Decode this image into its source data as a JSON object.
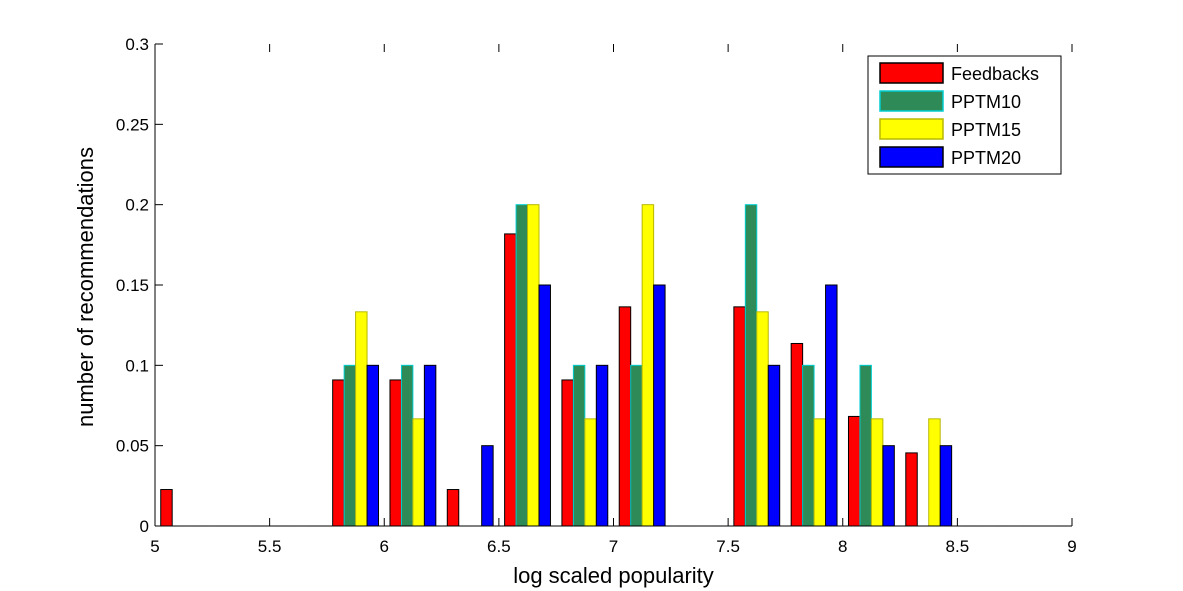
{
  "chart_data": {
    "type": "bar",
    "title": "",
    "xlabel": "log scaled popularity",
    "ylabel": "number of recommendations",
    "xlim": [
      5,
      9
    ],
    "ylim": [
      0,
      0.3
    ],
    "xticks": [
      "5",
      "5.5",
      "6",
      "6.5",
      "7",
      "7.5",
      "8",
      "8.5",
      "9"
    ],
    "yticks": [
      "0",
      "0.05",
      "0.1",
      "0.15",
      "0.2",
      "0.25",
      "0.3"
    ],
    "x": [
      5.125,
      5.375,
      5.625,
      5.875,
      6.125,
      6.375,
      6.625,
      6.875,
      7.125,
      7.375,
      7.625,
      7.875,
      8.125,
      8.375,
      8.625,
      8.875
    ],
    "series": [
      {
        "name": "Feedbacks",
        "color": "#ff0000",
        "edge": "#000000",
        "values": [
          0.0227,
          0,
          0,
          0.0909,
          0.0909,
          0.0227,
          0.1818,
          0.0909,
          0.1364,
          0,
          0.1364,
          0.1136,
          0.0682,
          0.0455,
          0,
          0
        ]
      },
      {
        "name": "PPTM10",
        "color": "#2e8b57",
        "edge": "#00ced1",
        "values": [
          0,
          0,
          0,
          0.1,
          0.1,
          0,
          0.2,
          0.1,
          0.1,
          0,
          0.2,
          0.1,
          0.1,
          0,
          0,
          0
        ]
      },
      {
        "name": "PPTM15",
        "color": "#ffff00",
        "edge": "#b8b800",
        "values": [
          0,
          0,
          0,
          0.1333,
          0.0667,
          0,
          0.2,
          0.0667,
          0.2,
          0,
          0.1333,
          0.0667,
          0.0667,
          0.0667,
          0,
          0
        ]
      },
      {
        "name": "PPTM20",
        "color": "#0000ff",
        "edge": "#000000",
        "values": [
          0,
          0,
          0,
          0.1,
          0.1,
          0.05,
          0.15,
          0.1,
          0.15,
          0,
          0.1,
          0.15,
          0.05,
          0.05,
          0,
          0
        ]
      }
    ],
    "legend_position": "top-right",
    "grid": false
  }
}
